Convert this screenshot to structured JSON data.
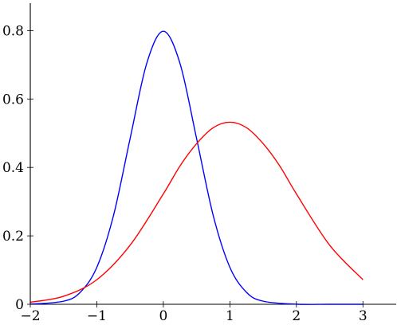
{
  "chart_data": {
    "type": "line",
    "title": "",
    "xlabel": "",
    "ylabel": "",
    "xlim": [
      -2,
      3.5
    ],
    "ylim": [
      0,
      0.88
    ],
    "grid": false,
    "x_ticks": [
      -2,
      -1,
      0,
      1,
      2,
      3
    ],
    "x_tick_labels": [
      "−2",
      "−1",
      "0",
      "1",
      "2",
      "3"
    ],
    "y_ticks": [
      0,
      0.2,
      0.4,
      0.6,
      0.8
    ],
    "y_tick_labels": [
      "0",
      "0.2",
      "0.4",
      "0.6",
      "0.8"
    ],
    "series": [
      {
        "color": "#0000ff",
        "x": [
          -2,
          -1.5,
          -1.25,
          -1,
          -0.75,
          -0.5,
          -0.25,
          0,
          0.25,
          0.5,
          0.75,
          1,
          1.25,
          1.5,
          2,
          2.5,
          3
        ],
        "y": [
          0.0003,
          0.009,
          0.035,
          0.108,
          0.259,
          0.484,
          0.704,
          0.798,
          0.704,
          0.484,
          0.259,
          0.108,
          0.035,
          0.009,
          0.0003,
          0,
          0
        ]
      },
      {
        "color": "#ff0000",
        "x": [
          -2,
          -1.5,
          -1,
          -0.5,
          0,
          0.25,
          0.5,
          0.75,
          1,
          1.25,
          1.5,
          1.75,
          2,
          2.5,
          3
        ],
        "y": [
          0.0059,
          0.0234,
          0.0719,
          0.1727,
          0.3227,
          0.4043,
          0.4695,
          0.5161,
          0.532,
          0.5161,
          0.4695,
          0.4043,
          0.3227,
          0.1727,
          0.0719
        ]
      }
    ]
  }
}
